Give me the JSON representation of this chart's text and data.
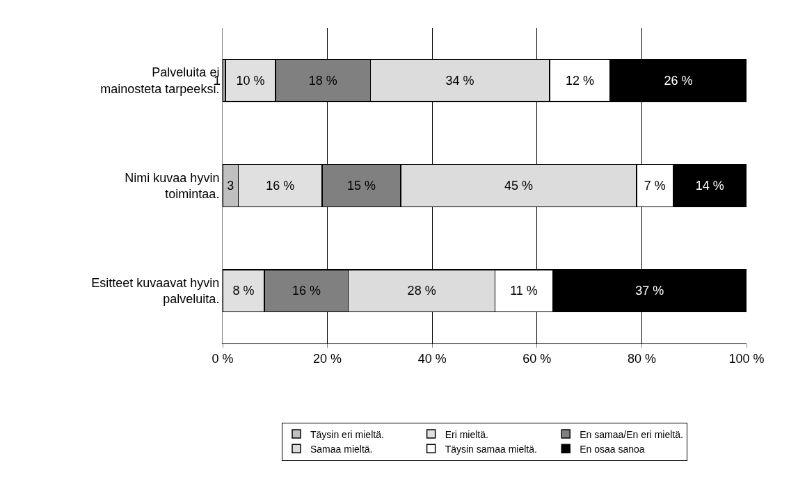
{
  "chart_data": {
    "type": "bar",
    "orientation": "horizontal",
    "stacked": true,
    "categories": [
      "Palveluita ei mainosteta tarpeeksi.",
      "Nimi kuvaa hyvin toimintaa.",
      "Esitteet kuvaavat hyvin palveluita."
    ],
    "series": [
      {
        "name": "Täysin eri mieltä.",
        "color": "#c0c0c0",
        "values": [
          0.5,
          3,
          null
        ],
        "value_labels": [
          "1",
          "3",
          null
        ]
      },
      {
        "name": "Eri mieltä.",
        "color": "#e0e0e0",
        "values": [
          9.6,
          16,
          8
        ],
        "value_labels": [
          "10 %",
          "16 %",
          "8 %"
        ]
      },
      {
        "name": "En samaa/En eri mieltä.",
        "color": "#808080",
        "values": [
          18.1,
          15,
          16
        ],
        "value_labels": [
          "18 %",
          "15 %",
          "16 %"
        ]
      },
      {
        "name": "Samaa mieltä.",
        "color": "#dcdcdc",
        "values": [
          34.2,
          45,
          28
        ],
        "value_labels": [
          "34 %",
          "45 %",
          "28 %"
        ]
      },
      {
        "name": "Täysin samaa mieltä.",
        "color": "#ffffff",
        "values": [
          11.6,
          7,
          11
        ],
        "value_labels": [
          "12 %",
          "7 %",
          "11 %"
        ]
      },
      {
        "name": "En osaa sanoa",
        "color": "#000000",
        "values": [
          26,
          14,
          37
        ],
        "value_labels": [
          "26 %",
          "14 %",
          "37 %"
        ]
      }
    ],
    "xlim": [
      0,
      100
    ],
    "xticks": [
      {
        "value": 0,
        "label": "0 %"
      },
      {
        "value": 20,
        "label": "20 %"
      },
      {
        "value": 40,
        "label": "40 %"
      },
      {
        "value": 60,
        "label": "60 %"
      },
      {
        "value": 80,
        "label": "80 %"
      },
      {
        "value": 100,
        "label": "100 %"
      }
    ],
    "grid": "x",
    "legend": "bottom"
  }
}
